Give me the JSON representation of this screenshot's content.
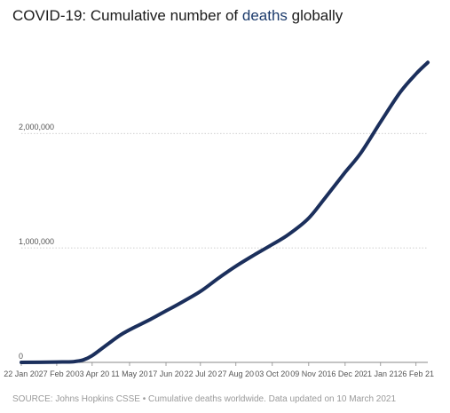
{
  "title": {
    "prefix": "COVID-19: Cumulative number of ",
    "highlight": "deaths",
    "suffix": " globally"
  },
  "source": "SOURCE: Johns Hopkins CSSE • Cumulative deaths worldwide. Data updated on 10 March 2021",
  "colors": {
    "line": "#1b2f5c",
    "highlight": "#1b3a6b",
    "grid": "#bfbfbf"
  },
  "chart_data": {
    "type": "line",
    "title": "COVID-19: Cumulative number of deaths globally",
    "xlabel": "",
    "ylabel": "",
    "grid": true,
    "ylim": [
      0,
      2700000
    ],
    "xlim": [
      "2020-01-22",
      "2021-03-10"
    ],
    "yticks": [
      0,
      1000000,
      2000000
    ],
    "ytick_labels": [
      "0",
      "1,000,000",
      "2,000,000"
    ],
    "xticks": [
      "2020-01-22",
      "2020-02-27",
      "2020-04-03",
      "2020-05-11",
      "2020-06-17",
      "2020-07-22",
      "2020-08-27",
      "2020-10-03",
      "2020-11-09",
      "2020-12-16",
      "2021-01-21",
      "2021-02-26"
    ],
    "xtick_labels": [
      "22 Jan 20",
      "27 Feb 20",
      "03 Apr 20",
      "11 May 20",
      "17 Jun 20",
      "22 Jul 20",
      "27 Aug 20",
      "03 Oct 20",
      "09 Nov 20",
      "16 Dec 20",
      "21 Jan 21",
      "26 Feb 21"
    ],
    "series": [
      {
        "x": [
          "2020-01-22",
          "2020-02-27",
          "2020-03-15",
          "2020-03-25",
          "2020-04-03",
          "2020-04-15",
          "2020-05-01",
          "2020-05-11",
          "2020-06-01",
          "2020-06-17",
          "2020-07-01",
          "2020-07-22",
          "2020-08-10",
          "2020-08-27",
          "2020-09-15",
          "2020-10-03",
          "2020-10-20",
          "2020-11-09",
          "2020-11-25",
          "2020-12-16",
          "2021-01-01",
          "2021-01-21",
          "2021-02-10",
          "2021-02-26",
          "2021-03-10"
        ],
        "y": [
          17,
          2800,
          6500,
          22000,
          59000,
          135000,
          235000,
          285000,
          375000,
          450000,
          515000,
          620000,
          740000,
          840000,
          940000,
          1030000,
          1120000,
          1260000,
          1430000,
          1660000,
          1830000,
          2100000,
          2360000,
          2520000,
          2620000
        ]
      }
    ]
  }
}
